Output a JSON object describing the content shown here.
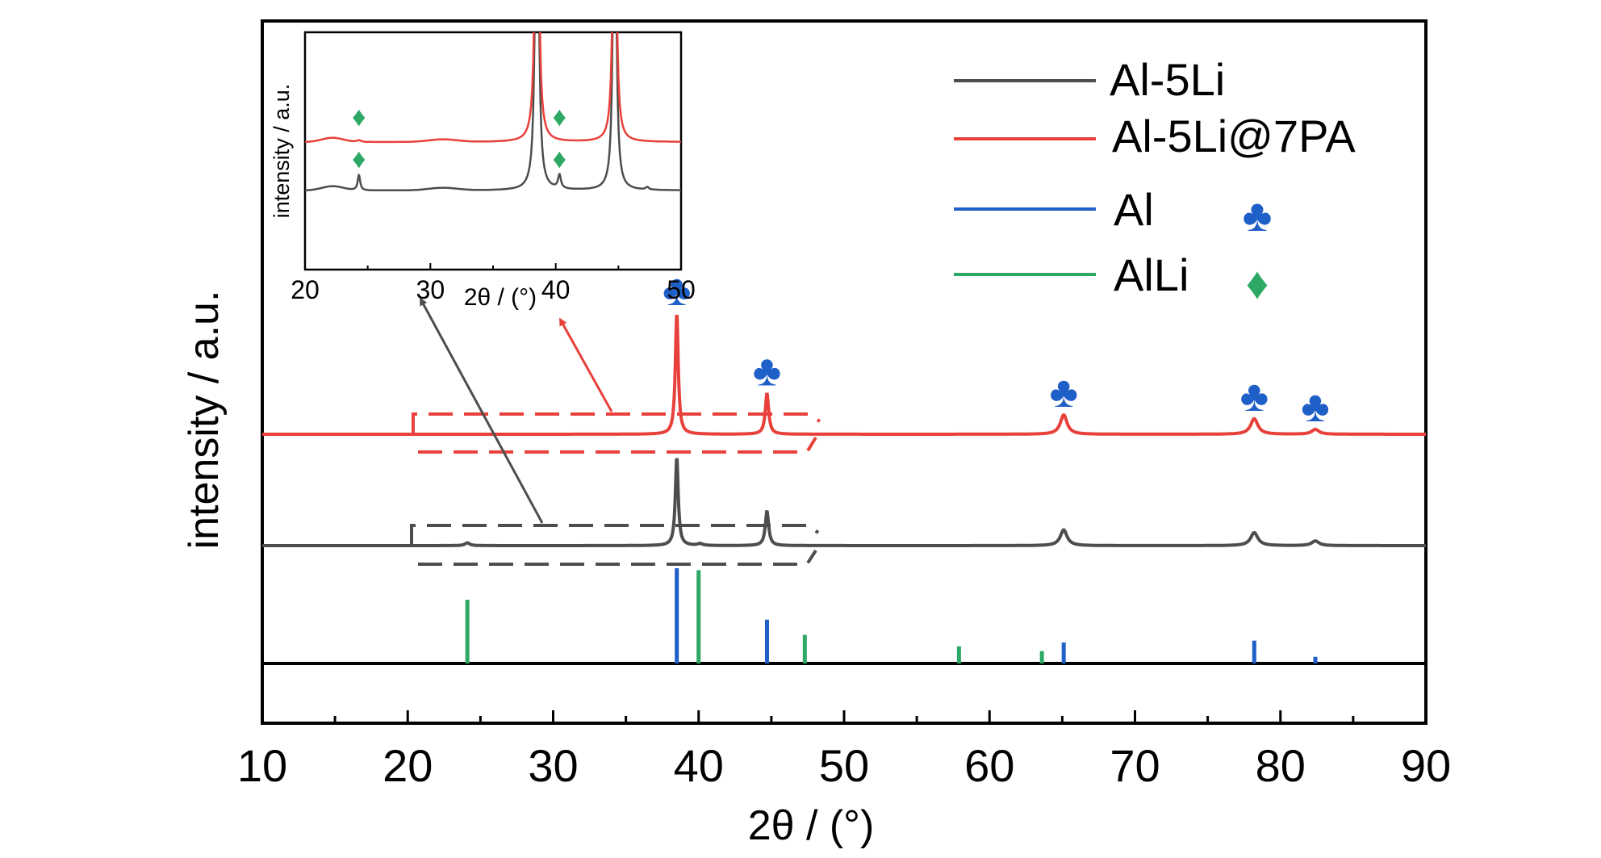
{
  "chart_data": {
    "type": "line",
    "xlabel": "2θ / (°)",
    "ylabel": "intensity / a.u.",
    "xlim": [
      10,
      90
    ],
    "xticks": [
      "10",
      "20",
      "30",
      "40",
      "50",
      "60",
      "70",
      "80",
      "90"
    ],
    "colors": {
      "Al-5Li": "#4d4d4d",
      "Al-5Li@7PA": "#e8403b",
      "Al": "#1f5fc8",
      "AlLi": "#2ea865"
    },
    "legend": {
      "placement": "top-right",
      "entries": [
        {
          "name": "Al-5Li",
          "color": "#4d4d4d",
          "marker": ""
        },
        {
          "name": "Al-5Li@7PA",
          "color": "#e8403b",
          "marker": ""
        },
        {
          "name": "Al",
          "color": "#1f5fc8",
          "marker": "♣"
        },
        {
          "name": "AlLi",
          "color": "#2ea865",
          "marker": "♦"
        }
      ]
    },
    "series": [
      {
        "name": "Al-5Li",
        "peaks": [
          {
            "x": 24.1,
            "height": 0.03,
            "width": 0.2
          },
          {
            "x": 38.5,
            "height": 0.95,
            "width": 0.12
          },
          {
            "x": 40.1,
            "height": 0.02,
            "width": 0.2
          },
          {
            "x": 44.7,
            "height": 0.37,
            "width": 0.14
          },
          {
            "x": 65.1,
            "height": 0.17,
            "width": 0.28
          },
          {
            "x": 78.2,
            "height": 0.14,
            "width": 0.3
          },
          {
            "x": 82.4,
            "height": 0.05,
            "width": 0.3
          }
        ]
      },
      {
        "name": "Al-5Li@7PA",
        "peaks": [
          {
            "x": 38.5,
            "height": 1.25,
            "width": 0.12
          },
          {
            "x": 44.7,
            "height": 0.42,
            "width": 0.14
          },
          {
            "x": 65.1,
            "height": 0.2,
            "width": 0.28
          },
          {
            "x": 78.2,
            "height": 0.16,
            "width": 0.3
          },
          {
            "x": 82.4,
            "height": 0.05,
            "width": 0.3
          }
        ]
      }
    ],
    "reference": {
      "Al": [
        {
          "x": 38.5,
          "intensity": 1.0
        },
        {
          "x": 44.7,
          "intensity": 0.46
        },
        {
          "x": 65.1,
          "intensity": 0.22
        },
        {
          "x": 78.2,
          "intensity": 0.24
        },
        {
          "x": 82.4,
          "intensity": 0.07
        }
      ],
      "AlLi": [
        {
          "x": 24.1,
          "intensity": 0.67
        },
        {
          "x": 40.0,
          "intensity": 0.98
        },
        {
          "x": 47.3,
          "intensity": 0.3
        },
        {
          "x": 57.9,
          "intensity": 0.18
        },
        {
          "x": 63.6,
          "intensity": 0.13
        }
      ]
    },
    "peak_markers": [
      {
        "x": 38.5,
        "symbol": "♣"
      },
      {
        "x": 44.7,
        "symbol": "♣"
      },
      {
        "x": 65.1,
        "symbol": "♣"
      },
      {
        "x": 78.2,
        "symbol": "♣"
      },
      {
        "x": 82.4,
        "symbol": "♣"
      }
    ],
    "inset": {
      "xlim": [
        20,
        50
      ],
      "xticks": [
        "20",
        "30",
        "40",
        "50"
      ],
      "xlabel": "2θ / (°)",
      "ylabel": "intensity / a.u.",
      "markers": [
        {
          "x": 24.3,
          "symbol": "♦",
          "series": "Al-5Li@7PA"
        },
        {
          "x": 40.3,
          "symbol": "♦",
          "series": "Al-5Li@7PA"
        },
        {
          "x": 24.3,
          "symbol": "♦",
          "series": "Al-5Li"
        },
        {
          "x": 40.3,
          "symbol": "♦",
          "series": "Al-5Li"
        }
      ]
    }
  }
}
